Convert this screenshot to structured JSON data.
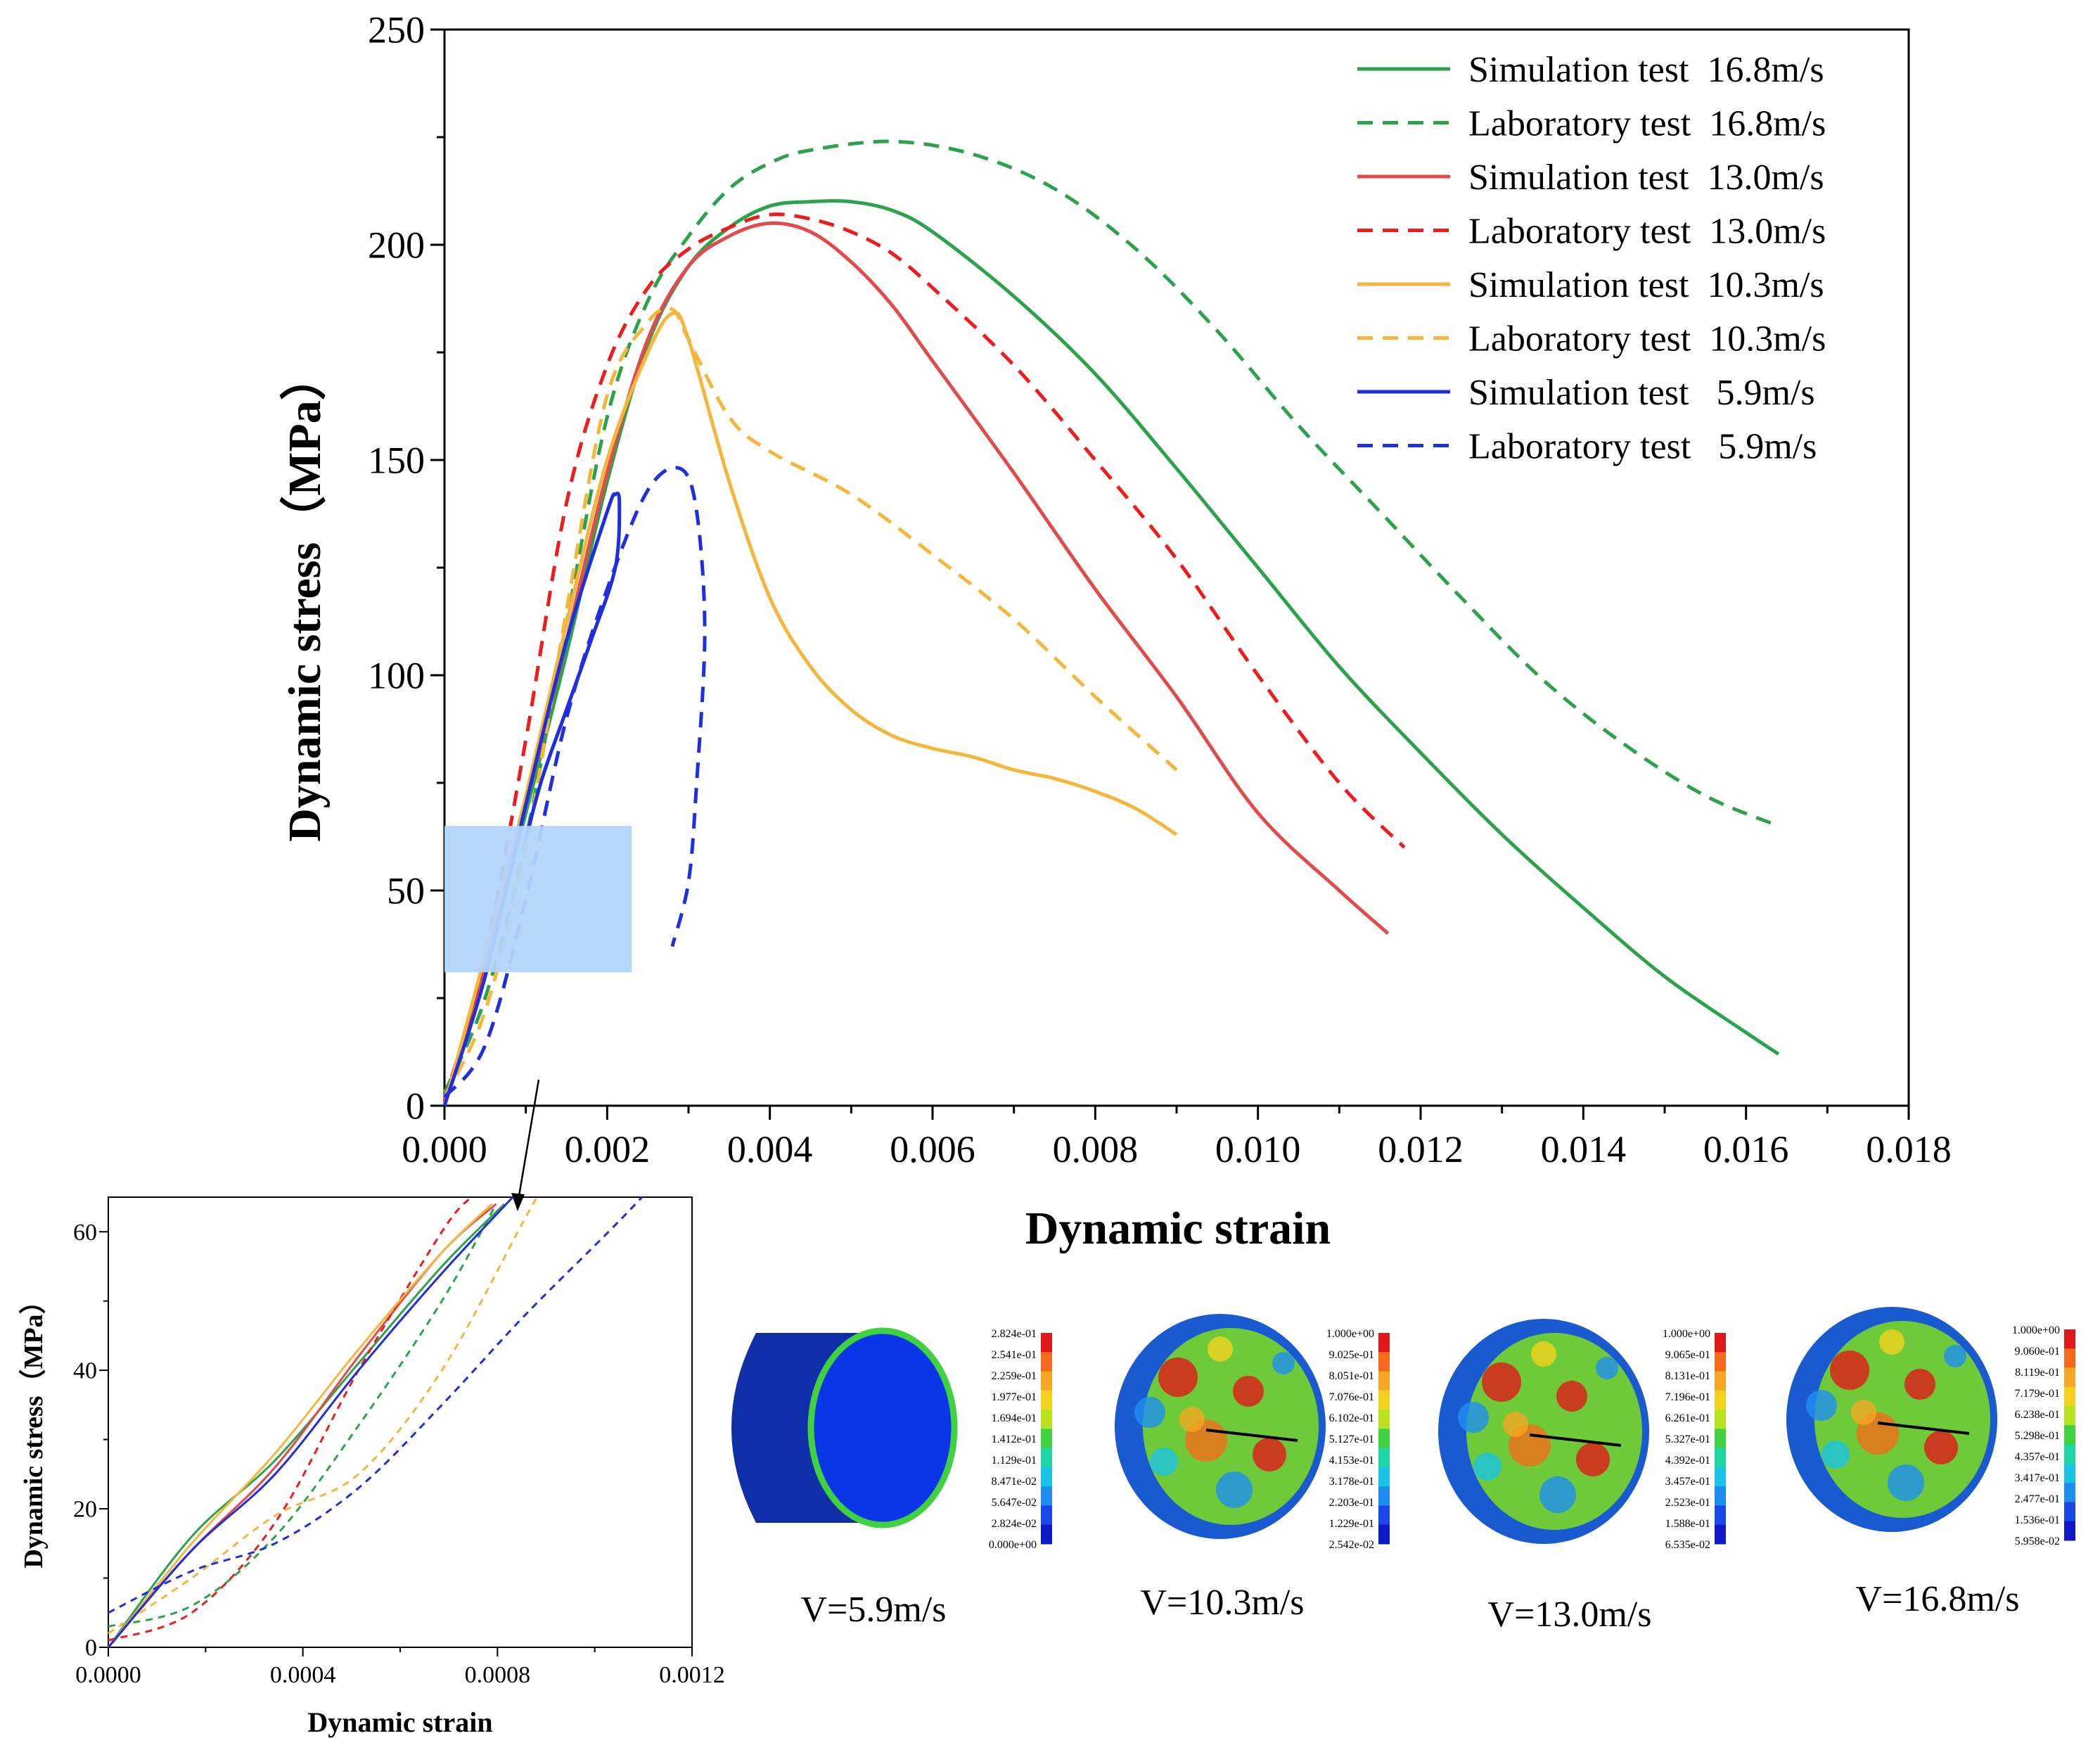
{
  "chart_data": [
    {
      "type": "line",
      "xlabel": "Dynamic strain",
      "ylabel": "Dynamic stress（MPa）",
      "xlim": [
        0,
        0.018
      ],
      "ylim": [
        0,
        250
      ],
      "xticks": [
        "0.000",
        "0.002",
        "0.004",
        "0.006",
        "0.008",
        "0.010",
        "0.012",
        "0.014",
        "0.016",
        "0.018"
      ],
      "yticks": [
        "0",
        "50",
        "100",
        "150",
        "200",
        "250"
      ],
      "legend_position": "top-right",
      "zoom_region": {
        "x": [
          0,
          0.0023
        ],
        "y": [
          31,
          65
        ]
      },
      "series": [
        {
          "name": "Simulation test  16.8m/s",
          "color": "#2ba24b",
          "style": "solid",
          "points": [
            [
              0,
              0
            ],
            [
              0.0005,
              32
            ],
            [
              0.001,
              68
            ],
            [
              0.0015,
              105
            ],
            [
              0.002,
              145
            ],
            [
              0.0025,
              177
            ],
            [
              0.003,
              195
            ],
            [
              0.0035,
              204
            ],
            [
              0.004,
              209
            ],
            [
              0.0045,
              210
            ],
            [
              0.005,
              210
            ],
            [
              0.0055,
              208
            ],
            [
              0.006,
              203
            ],
            [
              0.007,
              188
            ],
            [
              0.008,
              170
            ],
            [
              0.009,
              148
            ],
            [
              0.01,
              125
            ],
            [
              0.011,
              102
            ],
            [
              0.012,
              82
            ],
            [
              0.013,
              63
            ],
            [
              0.014,
              46
            ],
            [
              0.015,
              30
            ],
            [
              0.016,
              17
            ],
            [
              0.0164,
              12
            ]
          ]
        },
        {
          "name": "Laboratory test  16.8m/s",
          "color": "#2ba24b",
          "style": "dashed",
          "points": [
            [
              0,
              3
            ],
            [
              0.0005,
              25
            ],
            [
              0.001,
              62
            ],
            [
              0.0015,
              112
            ],
            [
              0.002,
              160
            ],
            [
              0.0025,
              187
            ],
            [
              0.003,
              202
            ],
            [
              0.0035,
              213
            ],
            [
              0.004,
              219
            ],
            [
              0.0045,
              222
            ],
            [
              0.0055,
              224
            ],
            [
              0.0065,
              221
            ],
            [
              0.0075,
              213
            ],
            [
              0.0085,
              199
            ],
            [
              0.0095,
              180
            ],
            [
              0.0105,
              158
            ],
            [
              0.0115,
              138
            ],
            [
              0.0125,
              118
            ],
            [
              0.0135,
              99
            ],
            [
              0.0145,
              84
            ],
            [
              0.0155,
              72
            ],
            [
              0.0164,
              65
            ]
          ]
        },
        {
          "name": "Simulation test  13.0m/s",
          "color": "#e04b4b",
          "style": "solid",
          "points": [
            [
              0,
              0
            ],
            [
              0.0005,
              33
            ],
            [
              0.001,
              70
            ],
            [
              0.0015,
              108
            ],
            [
              0.002,
              147
            ],
            [
              0.0025,
              178
            ],
            [
              0.003,
              195
            ],
            [
              0.0035,
              202
            ],
            [
              0.004,
              205
            ],
            [
              0.0045,
              203
            ],
            [
              0.005,
              196
            ],
            [
              0.0055,
              186
            ],
            [
              0.006,
              173
            ],
            [
              0.007,
              147
            ],
            [
              0.008,
              120
            ],
            [
              0.009,
              95
            ],
            [
              0.01,
              68
            ],
            [
              0.011,
              50
            ],
            [
              0.0116,
              40
            ]
          ]
        },
        {
          "name": "Laboratory test  13.0m/s",
          "color": "#ee1c1c",
          "style": "dashed",
          "points": [
            [
              0,
              1
            ],
            [
              0.0005,
              35
            ],
            [
              0.001,
              85
            ],
            [
              0.0015,
              140
            ],
            [
              0.002,
              172
            ],
            [
              0.0025,
              190
            ],
            [
              0.003,
              199
            ],
            [
              0.0035,
              204
            ],
            [
              0.004,
              207
            ],
            [
              0.0045,
              206
            ],
            [
              0.005,
              203
            ],
            [
              0.0055,
              198
            ],
            [
              0.006,
              190
            ],
            [
              0.007,
              172
            ],
            [
              0.008,
              150
            ],
            [
              0.009,
              127
            ],
            [
              0.01,
              100
            ],
            [
              0.011,
              75
            ],
            [
              0.0118,
              60
            ]
          ]
        },
        {
          "name": "Simulation test  10.3m/s",
          "color": "#f5b73b",
          "style": "solid",
          "points": [
            [
              0,
              0
            ],
            [
              0.0005,
              35
            ],
            [
              0.001,
              72
            ],
            [
              0.0015,
              112
            ],
            [
              0.002,
              150
            ],
            [
              0.0025,
              175
            ],
            [
              0.0028,
              184
            ],
            [
              0.003,
              178
            ],
            [
              0.0035,
              145
            ],
            [
              0.004,
              118
            ],
            [
              0.0045,
              102
            ],
            [
              0.005,
              92
            ],
            [
              0.0055,
              86
            ],
            [
              0.006,
              83
            ],
            [
              0.0065,
              81
            ],
            [
              0.007,
              78
            ],
            [
              0.0075,
              76
            ],
            [
              0.008,
              73
            ],
            [
              0.0085,
              69
            ],
            [
              0.009,
              63
            ]
          ]
        },
        {
          "name": "Laboratory test  10.3m/s",
          "color": "#f5b73b",
          "style": "dashed",
          "points": [
            [
              0,
              2
            ],
            [
              0.0005,
              22
            ],
            [
              0.001,
              60
            ],
            [
              0.0015,
              115
            ],
            [
              0.002,
              165
            ],
            [
              0.0025,
              182
            ],
            [
              0.0028,
              185
            ],
            [
              0.003,
              178
            ],
            [
              0.0035,
              160
            ],
            [
              0.004,
              152
            ],
            [
              0.005,
              142
            ],
            [
              0.006,
              128
            ],
            [
              0.007,
              113
            ],
            [
              0.008,
              95
            ],
            [
              0.009,
              78
            ]
          ]
        },
        {
          "name": "Simulation test   5.9m/s",
          "color": "#1f2fe0",
          "style": "solid",
          "points": [
            [
              0,
              0
            ],
            [
              0.0005,
              30
            ],
            [
              0.001,
              70
            ],
            [
              0.0015,
              108
            ],
            [
              0.002,
              138
            ],
            [
              0.0021,
              142
            ],
            [
              0.00215,
              140
            ],
            [
              0.0021,
              125
            ],
            [
              0.0018,
              108
            ],
            [
              0.0015,
              92
            ],
            [
              0.0012,
              76
            ],
            [
              0.001,
              62
            ]
          ]
        },
        {
          "name": "Laboratory test   5.9m/s",
          "color": "#1f2fe0",
          "style": "dashed",
          "points": [
            [
              0,
              2
            ],
            [
              0.0005,
              14
            ],
            [
              0.001,
              48
            ],
            [
              0.0015,
              90
            ],
            [
              0.002,
              120
            ],
            [
              0.0025,
              143
            ],
            [
              0.0029,
              148
            ],
            [
              0.0031,
              138
            ],
            [
              0.0032,
              110
            ],
            [
              0.0031,
              75
            ],
            [
              0.003,
              52
            ],
            [
              0.0028,
              37
            ]
          ]
        }
      ]
    },
    {
      "type": "line",
      "xlabel": "Dynamic strain",
      "ylabel": "Dynamic stress（MPa）",
      "xlim": [
        0,
        0.0014
      ],
      "ylim": [
        0,
        65
      ],
      "xticks": [
        "0.0000",
        "0.0004",
        "0.0008",
        "0.0012"
      ],
      "yticks": [
        "0",
        "20",
        "40",
        "60"
      ],
      "series": [
        {
          "color": "#2ba24b",
          "style": "solid",
          "points": [
            [
              0,
              0
            ],
            [
              0.0002,
              16
            ],
            [
              0.0004,
              27
            ],
            [
              0.0006,
              41
            ],
            [
              0.0008,
              55
            ],
            [
              0.00095,
              64
            ]
          ]
        },
        {
          "color": "#2ba24b",
          "style": "dashed",
          "points": [
            [
              0,
              3
            ],
            [
              0.0002,
              6
            ],
            [
              0.0004,
              16
            ],
            [
              0.0006,
              32
            ],
            [
              0.0008,
              50
            ],
            [
              0.00093,
              64
            ]
          ]
        },
        {
          "color": "#e04b4b",
          "style": "solid",
          "points": [
            [
              0,
              0
            ],
            [
              0.0002,
              14
            ],
            [
              0.0004,
              26
            ],
            [
              0.0006,
              42
            ],
            [
              0.0008,
              57
            ],
            [
              0.00093,
              64
            ]
          ]
        },
        {
          "color": "#ee1c1c",
          "style": "dashed",
          "points": [
            [
              0,
              1
            ],
            [
              0.0002,
              5
            ],
            [
              0.0004,
              18
            ],
            [
              0.0006,
              40
            ],
            [
              0.0008,
              60
            ],
            [
              0.00087,
              65
            ]
          ]
        },
        {
          "color": "#f5b73b",
          "style": "solid",
          "points": [
            [
              0,
              0
            ],
            [
              0.0002,
              15
            ],
            [
              0.0004,
              28
            ],
            [
              0.0006,
              43
            ],
            [
              0.0008,
              57
            ],
            [
              0.00092,
              64
            ]
          ]
        },
        {
          "color": "#f5b73b",
          "style": "dashed",
          "points": [
            [
              0,
              2
            ],
            [
              0.0002,
              10
            ],
            [
              0.0004,
              19
            ],
            [
              0.0006,
              25
            ],
            [
              0.0008,
              40
            ],
            [
              0.001,
              62
            ],
            [
              0.00103,
              65
            ]
          ]
        },
        {
          "color": "#1f2fe0",
          "style": "solid",
          "points": [
            [
              0,
              0
            ],
            [
              0.0002,
              14
            ],
            [
              0.0004,
              25
            ],
            [
              0.0006,
              40
            ],
            [
              0.0008,
              54
            ],
            [
              0.00097,
              65
            ]
          ]
        },
        {
          "color": "#1f2fe0",
          "style": "dashed",
          "points": [
            [
              0,
              5
            ],
            [
              0.0002,
              11
            ],
            [
              0.0004,
              15
            ],
            [
              0.0006,
              23
            ],
            [
              0.0008,
              35
            ],
            [
              0.001,
              48
            ],
            [
              0.0012,
              60
            ],
            [
              0.00128,
              65
            ]
          ]
        }
      ]
    }
  ],
  "contours": [
    {
      "label": "V=5.9m/s",
      "scale": [
        "2.824e-01",
        "2.541e-01",
        "2.259e-01",
        "1.977e-01",
        "1.694e-01",
        "1.412e-01",
        "1.129e-01",
        "8.471e-02",
        "5.647e-02",
        "2.824e-02",
        "0.000e+00"
      ]
    },
    {
      "label": "V=10.3m/s",
      "scale": [
        "1.000e+00",
        "9.025e-01",
        "8.051e-01",
        "7.076e-01",
        "6.102e-01",
        "5.127e-01",
        "4.153e-01",
        "3.178e-01",
        "2.203e-01",
        "1.229e-01",
        "2.542e-02"
      ]
    },
    {
      "label": "V=13.0m/s",
      "scale": [
        "1.000e+00",
        "9.065e-01",
        "8.131e-01",
        "7.196e-01",
        "6.261e-01",
        "5.327e-01",
        "4.392e-01",
        "3.457e-01",
        "2.523e-01",
        "1.588e-01",
        "6.535e-02"
      ]
    },
    {
      "label": "V=16.8m/s",
      "scale": [
        "1.000e+00",
        "9.060e-01",
        "8.119e-01",
        "7.179e-01",
        "6.238e-01",
        "5.298e-01",
        "4.357e-01",
        "3.417e-01",
        "2.477e-01",
        "1.536e-01",
        "5.958e-02"
      ]
    }
  ],
  "colors": {
    "scale_ramp": [
      "#e01818",
      "#f36b1a",
      "#f5a623",
      "#f2d21e",
      "#b6e31e",
      "#3fd13f",
      "#1ed5a4",
      "#19c3e6",
      "#1d8ef0",
      "#1a48e6",
      "#1018c8"
    ]
  }
}
